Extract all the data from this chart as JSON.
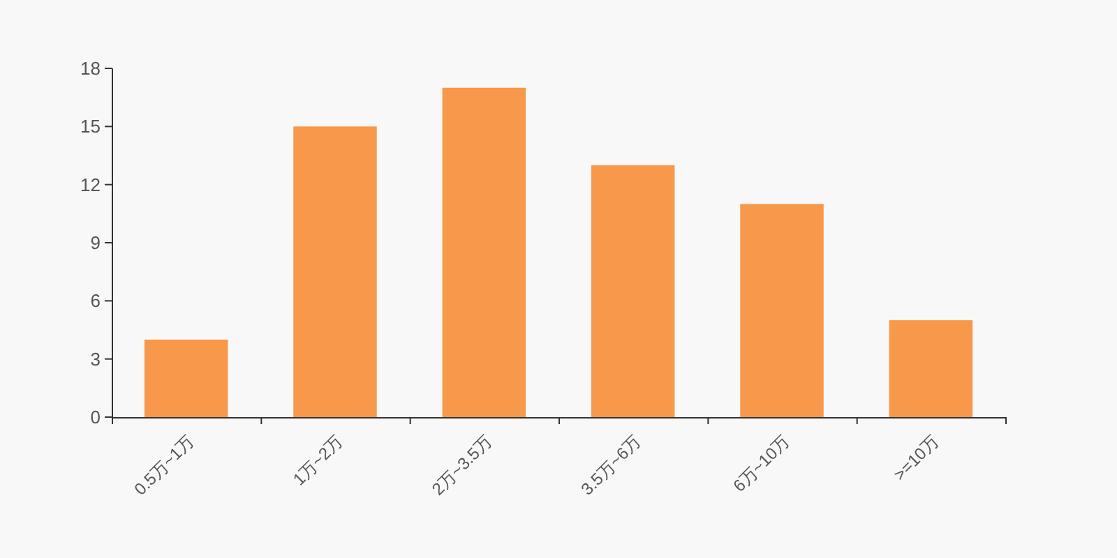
{
  "chart_data": {
    "type": "bar",
    "categories": [
      "0.5万~1万",
      "1万~2万",
      "2万~3.5万",
      "3.5万~6万",
      "6万~10万",
      ">=10万"
    ],
    "values": [
      4,
      15,
      17,
      13,
      11,
      5
    ],
    "color": "#f7984a",
    "ylim": [
      0,
      18
    ],
    "yticks": [
      0,
      3,
      6,
      9,
      12,
      15,
      18
    ],
    "grid": false
  }
}
